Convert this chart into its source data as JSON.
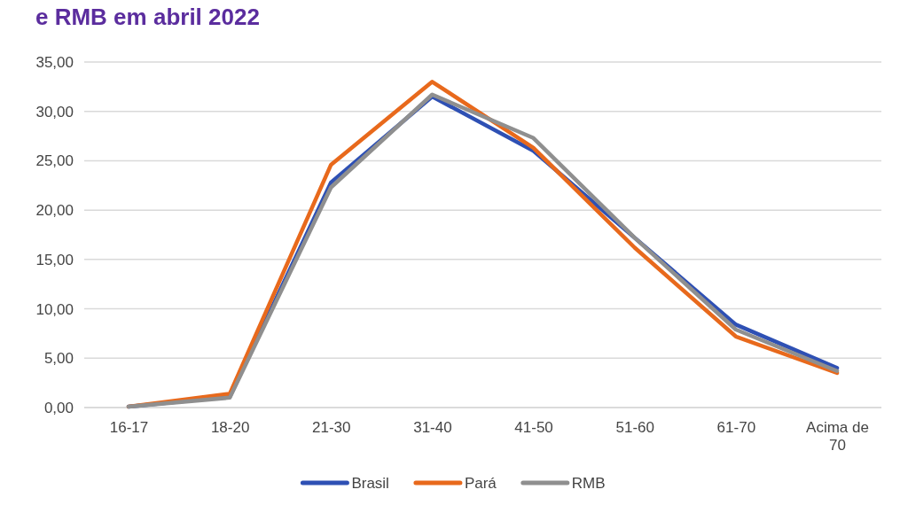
{
  "chart_data": {
    "type": "line",
    "title": "e RMB em abril 2022",
    "categories": [
      "16-17",
      "18-20",
      "21-30",
      "31-40",
      "41-50",
      "51-60",
      "61-70",
      "Acima de 70"
    ],
    "series": [
      {
        "name": "Brasil",
        "color": "#2e50b4",
        "values": [
          0.1,
          1.1,
          22.8,
          31.5,
          26.0,
          17.2,
          8.4,
          4.0
        ]
      },
      {
        "name": "Pará",
        "color": "#e8691c",
        "values": [
          0.1,
          1.4,
          24.6,
          33.0,
          26.3,
          16.2,
          7.2,
          3.5
        ]
      },
      {
        "name": "RMB",
        "color": "#8f8f8f",
        "values": [
          0.1,
          1.0,
          22.3,
          31.7,
          27.3,
          17.2,
          7.9,
          3.7
        ]
      }
    ],
    "ylim": [
      0,
      35
    ],
    "yticks": [
      {
        "value": 0,
        "label": "0,00"
      },
      {
        "value": 5,
        "label": "5,00"
      },
      {
        "value": 10,
        "label": "10,00"
      },
      {
        "value": 15,
        "label": "15,00"
      },
      {
        "value": 20,
        "label": "20,00"
      },
      {
        "value": 25,
        "label": "25,00"
      },
      {
        "value": 30,
        "label": "30,00"
      },
      {
        "value": 35,
        "label": "35,00"
      }
    ],
    "grid": "y",
    "legend": "bottom",
    "marker": "none",
    "line_style": "solid"
  }
}
